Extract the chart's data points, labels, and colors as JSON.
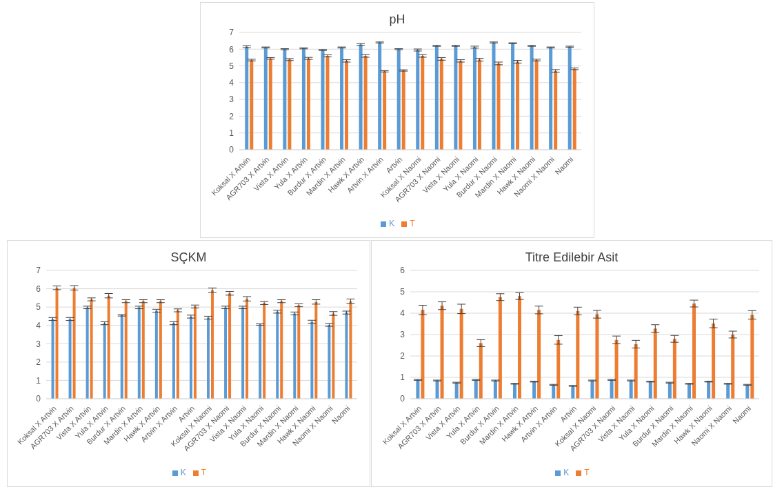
{
  "chart_data": [
    {
      "type": "bar",
      "title": "pH",
      "categories": [
        "Koksal X Artvin",
        "AGR703 X Artvin",
        "Vista X Artvin",
        "Yula X Artvin",
        "Burdur X Artvin",
        "Mardin X Artvin",
        "Hawk X Artvin",
        "Artvin X Artvin",
        "Artvin",
        "Koksal X Naomi",
        "AGR703 X Naomi",
        "Vista X Naomi",
        "Yula X Naomi",
        "Burdur X Naomi",
        "Mardin X Naomi",
        "Hawk X Naomi",
        "Naomi X Naomi",
        "Naomi"
      ],
      "series": [
        {
          "name": "K",
          "color": "#5b9bd5",
          "values": [
            6.15,
            6.1,
            6.0,
            6.05,
            5.95,
            6.1,
            6.28,
            6.4,
            6.0,
            5.95,
            6.2,
            6.2,
            6.12,
            6.4,
            6.35,
            6.2,
            6.1,
            6.15
          ],
          "errors": [
            0.06,
            0.03,
            0.03,
            0.03,
            0.03,
            0.03,
            0.06,
            0.03,
            0.03,
            0.06,
            0.03,
            0.03,
            0.06,
            0.03,
            0.03,
            0.03,
            0.03,
            0.03
          ]
        },
        {
          "name": "T",
          "color": "#ed7d31",
          "values": [
            5.35,
            5.45,
            5.38,
            5.45,
            5.6,
            5.3,
            5.6,
            4.68,
            4.73,
            5.6,
            5.42,
            5.3,
            5.37,
            5.15,
            5.25,
            5.35,
            4.7,
            4.83
          ],
          "errors": [
            0.05,
            0.05,
            0.06,
            0.06,
            0.06,
            0.07,
            0.08,
            0.04,
            0.04,
            0.08,
            0.08,
            0.07,
            0.08,
            0.08,
            0.08,
            0.05,
            0.08,
            0.05
          ]
        }
      ],
      "ylim": [
        0,
        7
      ],
      "yticks": [
        0,
        1,
        2,
        3,
        4,
        5,
        6,
        7
      ],
      "grid": "y",
      "legend": "bottom"
    },
    {
      "type": "bar",
      "title": "SÇKM",
      "categories": [
        "Koksal X Artvin",
        "AGR703 X Artvin",
        "Vista X Artvin",
        "Yula X Artvin",
        "Burdur X Artvin",
        "Mardin X Artvin",
        "Hawk X Artvin",
        "Artvin X Artvin",
        "Artvin",
        "Koksal X Naomi",
        "AGR703 X Naomi",
        "Vista X Naomi",
        "Yula X Naomi",
        "Burdur X Naomi",
        "Mardin X Naomi",
        "Hawk X Naomi",
        "Naomi X Naomi",
        "Naomi"
      ],
      "series": [
        {
          "name": "K",
          "color": "#5b9bd5",
          "values": [
            4.35,
            4.35,
            4.98,
            4.12,
            4.55,
            4.98,
            4.8,
            4.12,
            4.48,
            4.42,
            4.98,
            4.98,
            4.05,
            4.75,
            4.65,
            4.2,
            4.03,
            4.7
          ],
          "errors": [
            0.08,
            0.08,
            0.07,
            0.08,
            0.04,
            0.07,
            0.08,
            0.08,
            0.08,
            0.08,
            0.07,
            0.07,
            0.04,
            0.08,
            0.08,
            0.08,
            0.08,
            0.08
          ]
        },
        {
          "name": "T",
          "color": "#ed7d31",
          "values": [
            6.05,
            6.05,
            5.42,
            5.62,
            5.32,
            5.32,
            5.32,
            4.82,
            5.03,
            5.92,
            5.75,
            5.45,
            5.22,
            5.32,
            5.1,
            5.28,
            4.65,
            5.32
          ],
          "errors": [
            0.1,
            0.12,
            0.08,
            0.12,
            0.08,
            0.08,
            0.08,
            0.08,
            0.08,
            0.12,
            0.1,
            0.12,
            0.08,
            0.08,
            0.08,
            0.12,
            0.1,
            0.12
          ]
        }
      ],
      "ylim": [
        0,
        7
      ],
      "yticks": [
        0,
        1,
        2,
        3,
        4,
        5,
        6,
        7
      ],
      "grid": "y",
      "legend": "bottom"
    },
    {
      "type": "bar",
      "title": "Titre Edilebir Asit",
      "categories": [
        "Koksal X Artvin",
        "AGR703 X Artvin",
        "Vista X Artvin",
        "Yula X Artvin",
        "Burdur X Artvin",
        "Mardin X Artvin",
        "Hawk X Artvin",
        "Artvin X Artvin",
        "Artvin",
        "Koksal X Naomi",
        "AGR703 X Naomi",
        "Vista X Naomi",
        "Yula X Naomi",
        "Burdur X Naomi",
        "Mardin X Naomi",
        "Hawk X Naomi",
        "Naomi X Naomi",
        "Naomi"
      ],
      "series": [
        {
          "name": "K",
          "color": "#5b9bd5",
          "values": [
            0.88,
            0.85,
            0.75,
            0.88,
            0.85,
            0.7,
            0.8,
            0.65,
            0.6,
            0.85,
            0.88,
            0.85,
            0.8,
            0.75,
            0.7,
            0.8,
            0.7,
            0.65
          ],
          "errors": [
            0.02,
            0.02,
            0.02,
            0.02,
            0.02,
            0.02,
            0.02,
            0.02,
            0.02,
            0.02,
            0.02,
            0.02,
            0.02,
            0.02,
            0.02,
            0.02,
            0.02,
            0.02
          ]
        },
        {
          "name": "T",
          "color": "#ed7d31",
          "values": [
            4.15,
            4.35,
            4.2,
            2.6,
            4.75,
            4.8,
            4.15,
            2.75,
            4.1,
            3.95,
            2.75,
            2.55,
            3.28,
            2.8,
            4.45,
            3.52,
            3.0,
            3.92
          ],
          "errors": [
            0.22,
            0.18,
            0.22,
            0.16,
            0.16,
            0.16,
            0.18,
            0.2,
            0.18,
            0.18,
            0.18,
            0.18,
            0.18,
            0.16,
            0.16,
            0.2,
            0.16,
            0.2
          ]
        }
      ],
      "ylim": [
        0,
        6
      ],
      "yticks": [
        0,
        1,
        2,
        3,
        4,
        5,
        6
      ],
      "grid": "y",
      "legend": "bottom"
    }
  ]
}
